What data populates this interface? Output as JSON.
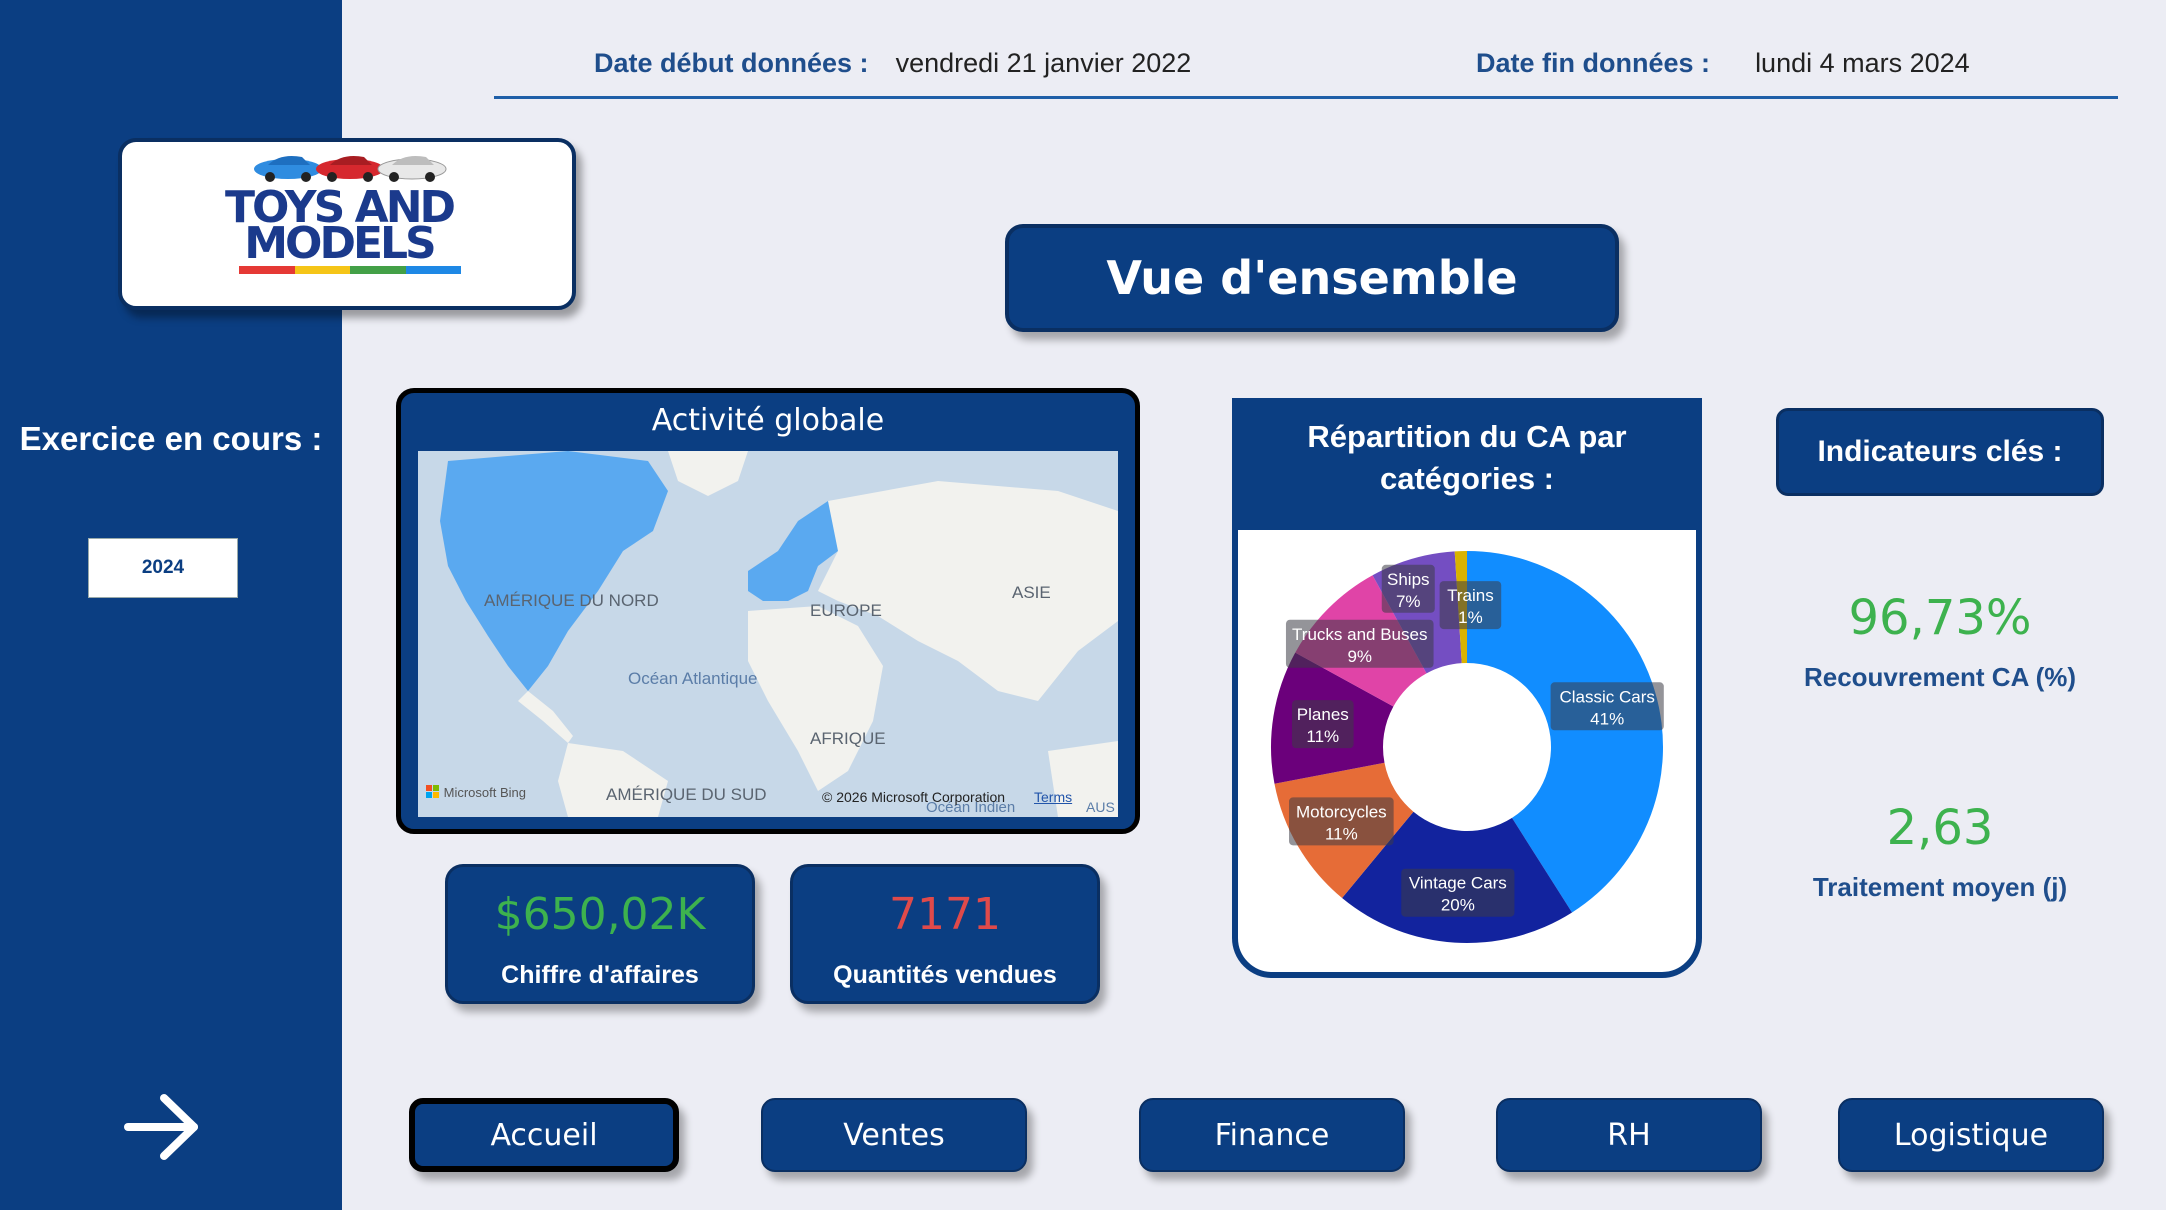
{
  "sidebar": {
    "logo": {
      "line1": "TOYS AND",
      "line2": "MODELS",
      "stripe_colors": [
        "#E53935",
        "#F5C518",
        "#43A047",
        "#1E88E5"
      ]
    },
    "exercice_label": "Exercice en cours :",
    "year": "2024",
    "next_icon": "arrow-right-icon"
  },
  "header": {
    "start_label": "Date début données :",
    "start_value": "vendredi 21 janvier 2022",
    "end_label": "Date fin données :",
    "end_value": "lundi 4 mars 2024"
  },
  "page_title": "Vue d'ensemble",
  "map": {
    "title": "Activité globale",
    "labels": {
      "north_america": "AMÉRIQUE DU NORD",
      "europe": "EUROPE",
      "asia": "ASIE",
      "atlantic": "Océan Atlantique",
      "africa": "AFRIQUE",
      "south_america": "AMÉRIQUE DU SUD",
      "indian": "Océan Indien",
      "aus": "AUS"
    },
    "bing": "Microsoft Bing",
    "copyright": "© 2026 Microsoft Corporation",
    "terms": "Terms"
  },
  "kpis": [
    {
      "value": "$650,02K",
      "label": "Chiffre d'affaires",
      "color": "#3DB24E"
    },
    {
      "value": "7171",
      "label": "Quantités vendues",
      "color": "#E04A4A"
    }
  ],
  "donut": {
    "title_line1": "Répartition du CA par",
    "title_line2": "catégories :"
  },
  "chart_data": {
    "type": "pie",
    "categories": [
      "Classic Cars",
      "Vintage Cars",
      "Motorcycles",
      "Planes",
      "Trucks and Buses",
      "Ships",
      "Trains"
    ],
    "values": [
      41,
      20,
      11,
      11,
      9,
      7,
      1
    ],
    "labels_pct": [
      "41%",
      "20%",
      "11%",
      "11%",
      "9%",
      "7%",
      "1%"
    ],
    "colors": [
      "#118DFF",
      "#12239E",
      "#E66C37",
      "#6B007B",
      "#E044A7",
      "#744EC2",
      "#D9B300"
    ]
  },
  "indicators": {
    "title": "Indicateurs clés :",
    "items": [
      {
        "value": "96,73%",
        "label": "Recouvrement CA (%)"
      },
      {
        "value": "2,63",
        "label": "Traitement moyen (j)"
      }
    ]
  },
  "nav": [
    {
      "label": "Accueil"
    },
    {
      "label": "Ventes"
    },
    {
      "label": "Finance"
    },
    {
      "label": "RH"
    },
    {
      "label": "Logistique"
    }
  ]
}
